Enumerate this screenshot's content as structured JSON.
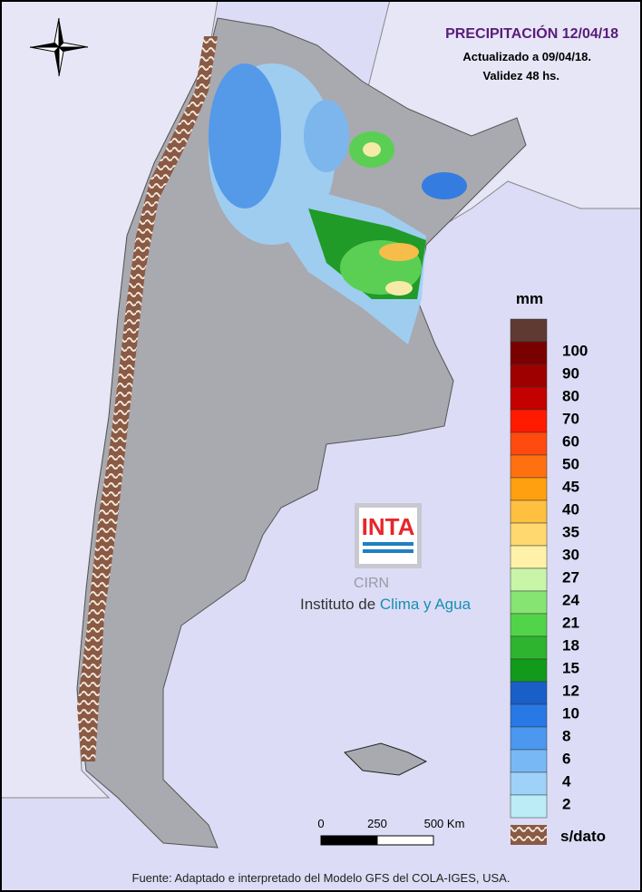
{
  "header": {
    "title": "PRECIPITACIÓN 12/04/18",
    "updated": "Actualizado a 09/04/18.",
    "validity": "Validez 48 hs."
  },
  "legend": {
    "unit": "mm",
    "top_color": "#5e3a32",
    "items": [
      {
        "label": "100",
        "color": "#7a0000"
      },
      {
        "label": "90",
        "color": "#9e0000"
      },
      {
        "label": "80",
        "color": "#c40000"
      },
      {
        "label": "70",
        "color": "#ff1a00"
      },
      {
        "label": "60",
        "color": "#ff4a10"
      },
      {
        "label": "50",
        "color": "#ff7010"
      },
      {
        "label": "45",
        "color": "#ffa010"
      },
      {
        "label": "40",
        "color": "#ffc040"
      },
      {
        "label": "35",
        "color": "#ffd870"
      },
      {
        "label": "30",
        "color": "#fff2a8"
      },
      {
        "label": "27",
        "color": "#c8f5a8"
      },
      {
        "label": "24",
        "color": "#86e472"
      },
      {
        "label": "21",
        "color": "#52d44a"
      },
      {
        "label": "18",
        "color": "#2eb42e"
      },
      {
        "label": "15",
        "color": "#129a1a"
      },
      {
        "label": "12",
        "color": "#1a5ec8"
      },
      {
        "label": "10",
        "color": "#2878e6"
      },
      {
        "label": "8",
        "color": "#4c98f0"
      },
      {
        "label": "6",
        "color": "#78b8f4"
      },
      {
        "label": "4",
        "color": "#9ed2f8"
      },
      {
        "label": "2",
        "color": "#bcecf6"
      }
    ],
    "no_data": "s/dato"
  },
  "scale": {
    "labels": [
      "0",
      "250",
      "500 Km"
    ]
  },
  "logo": {
    "brand": "INTA",
    "unit": "CIRN",
    "institute": "Instituto de ",
    "institute_highlight": "Clima y Agua"
  },
  "footer": "Fuente: Adaptado e interpretado del Modelo GFS del COLA-IGES, USA."
}
